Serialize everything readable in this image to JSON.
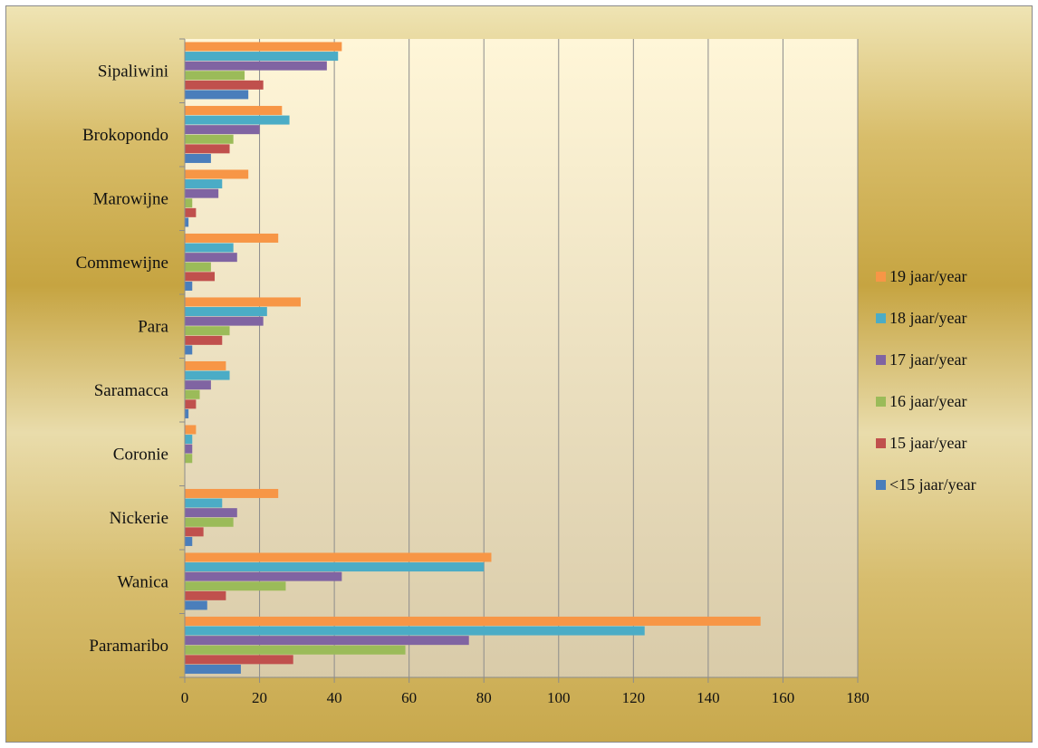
{
  "chart_data": {
    "type": "bar",
    "orientation": "horizontal",
    "categories": [
      "Paramaribo",
      "Wanica",
      "Nickerie",
      "Coronie",
      "Saramacca",
      "Para",
      "Commewijne",
      "Marowijne",
      "Brokopondo",
      "Sipaliwini"
    ],
    "series": [
      {
        "name": "<15 jaar/year",
        "color": "#4a7ebb",
        "values": [
          15,
          6,
          2,
          0,
          1,
          2,
          2,
          1,
          7,
          17
        ]
      },
      {
        "name": "15 jaar/year",
        "color": "#c0504d",
        "values": [
          29,
          11,
          5,
          0,
          3,
          10,
          8,
          3,
          12,
          21
        ]
      },
      {
        "name": "16 jaar/year",
        "color": "#9bbb59",
        "values": [
          59,
          27,
          13,
          2,
          4,
          12,
          7,
          2,
          13,
          16
        ]
      },
      {
        "name": "17 jaar/year",
        "color": "#8064a2",
        "values": [
          76,
          42,
          14,
          2,
          7,
          21,
          14,
          9,
          20,
          38
        ]
      },
      {
        "name": "18 jaar/year",
        "color": "#4bacc6",
        "values": [
          123,
          80,
          10,
          2,
          12,
          22,
          13,
          10,
          28,
          41
        ]
      },
      {
        "name": "19 jaar/year",
        "color": "#f79646",
        "values": [
          154,
          82,
          25,
          3,
          11,
          31,
          25,
          17,
          26,
          42
        ]
      }
    ],
    "xlim": [
      0,
      180
    ],
    "xticks": [
      0,
      20,
      40,
      60,
      80,
      100,
      120,
      140,
      160,
      180
    ],
    "grid": "vertical",
    "legend": "right"
  }
}
